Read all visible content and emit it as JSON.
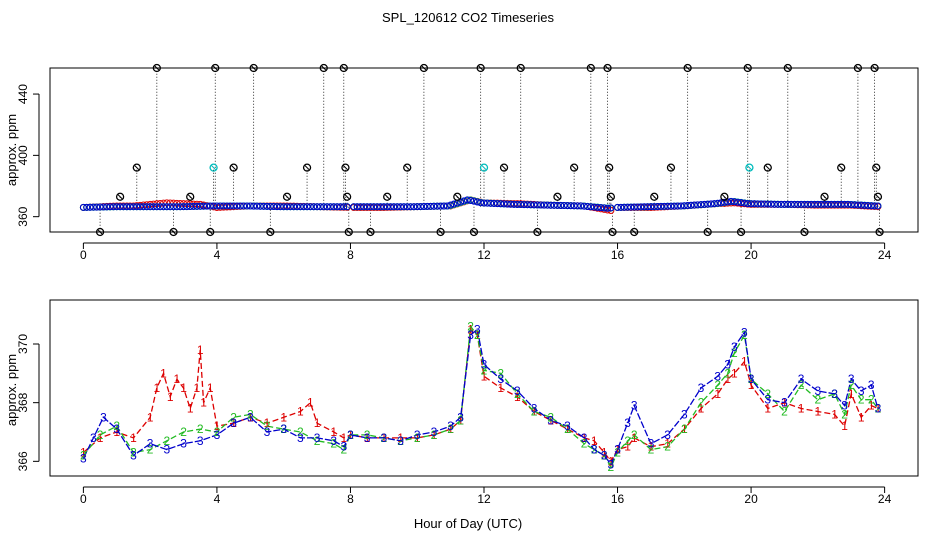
{
  "page_title": "SPL_120612  CO2 Timeseries",
  "colors": {
    "series1": "#dd0000",
    "series2": "#22bb22",
    "series3": "#0000cc",
    "series4": "#00bbbb",
    "outlier": "#000000"
  },
  "chart_data": [
    {
      "type": "scatter",
      "title": "SPL_120612  CO2 Timeseries",
      "xlabel": "",
      "ylabel": "approx. ppm",
      "xlim": [
        -1,
        25
      ],
      "ylim": [
        350,
        457
      ],
      "x_ticks": [
        0,
        4,
        8,
        12,
        16,
        20,
        24
      ],
      "x_tick_labels": [
        "0",
        "4",
        "8",
        "12",
        "16",
        "20",
        "24"
      ],
      "y_ticks": [
        360,
        400,
        440
      ],
      "y_tick_labels": [
        "360",
        "400",
        "440"
      ],
      "series": [
        {
          "name": "1",
          "values_at_hours": [
            [
              0,
              366
            ],
            [
              0.5,
              366.5
            ],
            [
              1,
              367
            ],
            [
              1.5,
              367
            ],
            [
              2,
              368
            ],
            [
              2.5,
              369
            ],
            [
              3,
              368.5
            ],
            [
              3.5,
              368
            ],
            [
              4,
              366
            ],
            [
              5,
              367
            ],
            [
              6,
              367
            ],
            [
              7,
              366.5
            ],
            [
              8,
              366
            ],
            [
              9,
              366
            ],
            [
              10,
              366.5
            ],
            [
              11,
              367
            ],
            [
              11.6,
              371
            ],
            [
              12,
              369
            ],
            [
              13,
              368.5
            ],
            [
              14,
              367.5
            ],
            [
              15,
              367
            ],
            [
              15.8,
              364
            ],
            [
              16,
              366
            ],
            [
              17,
              366
            ],
            [
              18,
              367
            ],
            [
              19,
              368.5
            ],
            [
              19.5,
              369
            ],
            [
              20,
              368
            ],
            [
              21,
              368
            ],
            [
              22,
              367.5
            ],
            [
              23,
              367.5
            ],
            [
              23.8,
              366.5
            ]
          ]
        },
        {
          "name": "2",
          "values_at_hours": [
            [
              0,
              366
            ],
            [
              1,
              366.5
            ],
            [
              2,
              366.5
            ],
            [
              3,
              366.5
            ],
            [
              4,
              367
            ],
            [
              5,
              367
            ],
            [
              6,
              366.5
            ],
            [
              7,
              366.5
            ],
            [
              8,
              366.5
            ],
            [
              9,
              366.5
            ],
            [
              10,
              366.5
            ],
            [
              11,
              367
            ],
            [
              11.6,
              371
            ],
            [
              12,
              369
            ],
            [
              13,
              368
            ],
            [
              14,
              367.5
            ],
            [
              15,
              367
            ],
            [
              15.8,
              365.5
            ],
            [
              16,
              366
            ],
            [
              17,
              366.5
            ],
            [
              18,
              367
            ],
            [
              19,
              368.5
            ],
            [
              19.5,
              370
            ],
            [
              20,
              368.5
            ],
            [
              21,
              368
            ],
            [
              22,
              368
            ],
            [
              23,
              368
            ],
            [
              23.8,
              367
            ]
          ]
        },
        {
          "name": "3",
          "values_at_hours": [
            [
              0,
              366
            ],
            [
              1,
              366.5
            ],
            [
              2,
              366.5
            ],
            [
              3,
              366.5
            ],
            [
              4,
              367
            ],
            [
              5,
              367
            ],
            [
              6,
              366.5
            ],
            [
              7,
              366.5
            ],
            [
              8,
              366.5
            ],
            [
              9,
              366.5
            ],
            [
              10,
              366.5
            ],
            [
              11,
              367
            ],
            [
              11.6,
              371
            ],
            [
              12,
              369
            ],
            [
              13,
              368
            ],
            [
              14,
              367.5
            ],
            [
              15,
              367
            ],
            [
              15.8,
              365.5
            ],
            [
              16,
              366
            ],
            [
              17,
              366.5
            ],
            [
              18,
              367
            ],
            [
              19,
              368.5
            ],
            [
              19.5,
              370
            ],
            [
              20,
              368.5
            ],
            [
              21,
              368
            ],
            [
              22,
              368
            ],
            [
              23,
              368
            ],
            [
              23.8,
              367
            ]
          ]
        }
      ],
      "outliers": [
        {
          "x": 0.5,
          "y": 350
        },
        {
          "x": 1.1,
          "y": 373
        },
        {
          "x": 1.6,
          "y": 392
        },
        {
          "x": 2.2,
          "y": 457
        },
        {
          "x": 2.7,
          "y": 350
        },
        {
          "x": 3.2,
          "y": 373
        },
        {
          "x": 3.8,
          "y": 350
        },
        {
          "x": 3.9,
          "y": 392
        },
        {
          "x": 3.95,
          "y": 457
        },
        {
          "x": 4.5,
          "y": 392
        },
        {
          "x": 5.1,
          "y": 457
        },
        {
          "x": 5.6,
          "y": 350
        },
        {
          "x": 6.1,
          "y": 373
        },
        {
          "x": 6.7,
          "y": 392
        },
        {
          "x": 7.2,
          "y": 457
        },
        {
          "x": 7.8,
          "y": 457
        },
        {
          "x": 7.85,
          "y": 392
        },
        {
          "x": 7.9,
          "y": 373
        },
        {
          "x": 7.95,
          "y": 350
        },
        {
          "x": 8.6,
          "y": 350
        },
        {
          "x": 9.1,
          "y": 373
        },
        {
          "x": 9.7,
          "y": 392
        },
        {
          "x": 10.2,
          "y": 457
        },
        {
          "x": 10.7,
          "y": 350
        },
        {
          "x": 11.2,
          "y": 373
        },
        {
          "x": 11.7,
          "y": 350
        },
        {
          "x": 11.9,
          "y": 457
        },
        {
          "x": 12.0,
          "y": 392
        },
        {
          "x": 12.6,
          "y": 392
        },
        {
          "x": 13.1,
          "y": 457
        },
        {
          "x": 13.6,
          "y": 350
        },
        {
          "x": 14.2,
          "y": 373
        },
        {
          "x": 14.7,
          "y": 392
        },
        {
          "x": 15.2,
          "y": 457
        },
        {
          "x": 15.7,
          "y": 457
        },
        {
          "x": 15.75,
          "y": 392
        },
        {
          "x": 15.8,
          "y": 373
        },
        {
          "x": 15.85,
          "y": 350
        },
        {
          "x": 16.5,
          "y": 350
        },
        {
          "x": 17.1,
          "y": 373
        },
        {
          "x": 17.6,
          "y": 392
        },
        {
          "x": 18.1,
          "y": 457
        },
        {
          "x": 18.7,
          "y": 350
        },
        {
          "x": 19.2,
          "y": 373
        },
        {
          "x": 19.7,
          "y": 350
        },
        {
          "x": 19.9,
          "y": 457
        },
        {
          "x": 19.95,
          "y": 392
        },
        {
          "x": 20.5,
          "y": 392
        },
        {
          "x": 21.1,
          "y": 457
        },
        {
          "x": 21.6,
          "y": 350
        },
        {
          "x": 22.2,
          "y": 373
        },
        {
          "x": 22.7,
          "y": 392
        },
        {
          "x": 23.2,
          "y": 457
        },
        {
          "x": 23.7,
          "y": 457
        },
        {
          "x": 23.75,
          "y": 392
        },
        {
          "x": 23.8,
          "y": 373
        },
        {
          "x": 23.85,
          "y": 350
        }
      ],
      "grid": false,
      "legend": "none"
    },
    {
      "type": "line",
      "title": "",
      "xlabel": "Hour of Day (UTC)",
      "ylabel": "approx. ppm",
      "xlim": [
        -1,
        25
      ],
      "ylim": [
        365.5,
        371.5
      ],
      "x_ticks": [
        0,
        4,
        8,
        12,
        16,
        20,
        24
      ],
      "x_tick_labels": [
        "0",
        "4",
        "8",
        "12",
        "16",
        "20",
        "24"
      ],
      "y_ticks": [
        366,
        368,
        370
      ],
      "y_tick_labels": [
        "366",
        "368",
        "370"
      ],
      "point_symbols": [
        "1",
        "2",
        "3"
      ],
      "series": [
        {
          "name": "1",
          "x": [
            0,
            0.5,
            1,
            1.5,
            2,
            2.2,
            2.4,
            2.6,
            2.8,
            3,
            3.2,
            3.4,
            3.5,
            3.6,
            3.8,
            4,
            4.5,
            5,
            5.5,
            6,
            6.5,
            6.8,
            7,
            7.5,
            7.8,
            8,
            8.5,
            9,
            9.5,
            10,
            10.5,
            11,
            11.3,
            11.6,
            11.8,
            12,
            12.5,
            13,
            13.5,
            14,
            14.5,
            15,
            15.3,
            15.6,
            15.8,
            16,
            16.3,
            16.5,
            17,
            17.5,
            18,
            18.5,
            19,
            19.3,
            19.5,
            19.8,
            20,
            20.5,
            21,
            21.5,
            22,
            22.5,
            22.8,
            23,
            23.3,
            23.6,
            23.8
          ],
          "values": [
            366.3,
            366.8,
            367.0,
            366.8,
            367.5,
            368.5,
            369.0,
            368.2,
            368.8,
            368.5,
            367.8,
            368.5,
            369.8,
            368.0,
            368.5,
            367.2,
            367.3,
            367.5,
            367.3,
            367.5,
            367.7,
            368.0,
            367.3,
            367.0,
            366.8,
            366.9,
            366.8,
            366.8,
            366.8,
            366.8,
            366.9,
            367.1,
            367.4,
            370.5,
            370.3,
            368.9,
            368.5,
            368.2,
            367.7,
            367.4,
            367.1,
            366.8,
            366.7,
            366.3,
            366.0,
            366.4,
            366.5,
            366.8,
            366.5,
            366.6,
            367.1,
            367.8,
            368.3,
            368.8,
            369.0,
            369.4,
            368.6,
            367.8,
            368.0,
            367.8,
            367.7,
            367.6,
            367.2,
            368.3,
            367.5,
            367.9,
            367.8
          ]
        },
        {
          "name": "2",
          "x": [
            0,
            0.5,
            1,
            1.5,
            2,
            2.5,
            3,
            3.5,
            4,
            4.5,
            5,
            5.5,
            6,
            6.5,
            7,
            7.5,
            7.8,
            8,
            8.5,
            9,
            9.5,
            10,
            10.5,
            11,
            11.3,
            11.6,
            11.8,
            12,
            12.5,
            13,
            13.5,
            14,
            14.5,
            15,
            15.3,
            15.6,
            15.8,
            16,
            16.3,
            16.5,
            17,
            17.5,
            18,
            18.5,
            19,
            19.3,
            19.5,
            19.8,
            20,
            20.5,
            21,
            21.5,
            22,
            22.5,
            22.8,
            23,
            23.3,
            23.6,
            23.8
          ],
          "values": [
            366.2,
            366.9,
            367.2,
            366.3,
            366.4,
            366.7,
            367.0,
            367.1,
            367.0,
            367.5,
            367.6,
            367.2,
            367.1,
            367.0,
            366.7,
            366.6,
            366.4,
            366.9,
            366.9,
            366.8,
            366.7,
            366.8,
            366.9,
            367.1,
            367.4,
            370.6,
            370.3,
            369.1,
            369.0,
            368.3,
            367.7,
            367.5,
            367.1,
            366.6,
            366.4,
            366.2,
            365.8,
            366.3,
            366.7,
            366.9,
            366.4,
            366.5,
            367.1,
            368.0,
            368.6,
            369.0,
            369.7,
            370.3,
            368.8,
            368.3,
            367.7,
            368.6,
            368.1,
            368.3,
            367.6,
            368.6,
            368.1,
            368.1,
            367.8
          ]
        },
        {
          "name": "3",
          "x": [
            0,
            0.3,
            0.6,
            1,
            1.5,
            2,
            2.5,
            3,
            3.5,
            4,
            4.5,
            5,
            5.5,
            6,
            6.5,
            7,
            7.5,
            7.8,
            8,
            8.5,
            9,
            9.5,
            10,
            10.5,
            11,
            11.3,
            11.6,
            11.8,
            12,
            12.5,
            13,
            13.5,
            14,
            14.5,
            15,
            15.3,
            15.6,
            15.8,
            16,
            16.3,
            16.5,
            17,
            17.5,
            18,
            18.5,
            19,
            19.3,
            19.5,
            19.8,
            20,
            20.5,
            21,
            21.5,
            22,
            22.5,
            22.8,
            23,
            23.3,
            23.6,
            23.8
          ],
          "values": [
            366.1,
            366.8,
            367.5,
            367.1,
            366.2,
            366.6,
            366.4,
            366.6,
            366.7,
            366.9,
            367.3,
            367.5,
            367.0,
            367.1,
            366.8,
            366.8,
            366.7,
            366.5,
            366.9,
            366.8,
            366.8,
            366.7,
            366.9,
            367.0,
            367.2,
            367.5,
            370.3,
            370.5,
            369.3,
            368.8,
            368.4,
            367.8,
            367.4,
            367.2,
            366.8,
            366.4,
            366.2,
            365.9,
            366.4,
            367.3,
            367.9,
            366.6,
            366.9,
            367.6,
            368.5,
            368.9,
            369.3,
            369.9,
            370.4,
            368.8,
            368.1,
            368.0,
            368.8,
            368.4,
            368.3,
            367.9,
            368.8,
            368.4,
            368.6,
            367.8
          ]
        }
      ],
      "grid": false,
      "legend": "none"
    }
  ]
}
